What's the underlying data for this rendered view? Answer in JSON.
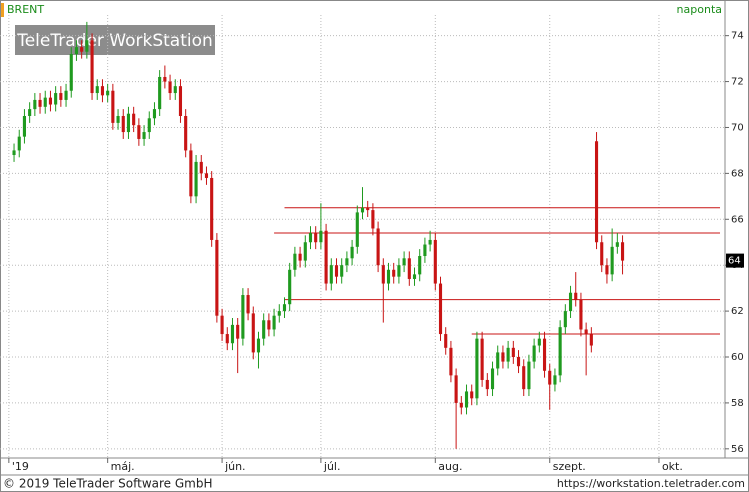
{
  "chart_data": {
    "type": "candlestick",
    "title": "BRENT",
    "period": "naponta",
    "watermark": "TeleTrader WorkStation",
    "copyright": "© 2019 TeleTrader Software GmbH",
    "url": "https://workstation.teletrader.com",
    "up_color": "#1f9a1f",
    "down_color": "#c81414",
    "line_color": "#c81414",
    "grid": true,
    "ylim": [
      55.6,
      74.9
    ],
    "yticks": [
      56,
      58,
      60,
      62,
      64,
      66,
      68,
      70,
      72,
      74
    ],
    "xlim": [
      -2.7,
      136.7
    ],
    "xticks": [
      {
        "value": -1,
        "label": "'19"
      },
      {
        "value": 18,
        "label": "máj."
      },
      {
        "value": 40,
        "label": "jún."
      },
      {
        "value": 59,
        "label": "júl."
      },
      {
        "value": 81,
        "label": "aug."
      },
      {
        "value": 103,
        "label": "szept."
      },
      {
        "value": 124,
        "label": "okt."
      }
    ],
    "last_label": {
      "value": 64.2,
      "label": "64"
    },
    "hlines": [
      {
        "value": 66.5,
        "start": 52
      },
      {
        "value": 65.4,
        "start": 50
      },
      {
        "value": 62.5,
        "start": 52
      },
      {
        "value": 61.0,
        "start": 88
      }
    ],
    "categories": [
      null,
      null,
      null,
      null,
      null,
      null,
      null,
      null,
      null,
      null,
      null,
      null,
      null,
      null,
      null,
      null,
      null,
      null,
      null,
      null,
      null,
      null,
      null,
      null,
      null,
      null,
      null,
      null,
      null,
      null,
      null,
      null,
      null,
      null,
      null,
      null,
      null,
      null,
      null,
      null,
      null,
      null,
      null,
      null,
      null,
      null,
      null,
      null,
      null,
      null,
      null,
      null,
      null,
      null,
      null,
      null,
      null,
      null,
      null,
      null,
      null,
      null,
      null,
      null,
      null,
      null,
      null,
      null,
      null,
      null,
      null,
      null,
      null,
      null,
      null,
      null,
      null,
      null,
      null,
      null,
      null,
      null,
      null,
      null,
      null,
      null,
      null,
      null,
      null,
      null,
      null,
      null,
      null,
      null,
      null,
      null,
      null,
      null,
      null,
      null,
      null,
      null,
      null,
      null,
      null,
      null,
      null,
      null,
      null,
      null,
      null,
      null,
      null,
      null,
      null,
      null,
      null,
      null
    ],
    "open": [
      68.8,
      69.0,
      69.6,
      70.5,
      70.8,
      71.2,
      70.9,
      71.3,
      71.0,
      71.5,
      71.2,
      71.6,
      73.2,
      73.5,
      73.3,
      73.8,
      71.5,
      71.8,
      71.4,
      71.6,
      70.2,
      70.5,
      69.8,
      70.6,
      70.1,
      69.5,
      69.8,
      70.4,
      70.8,
      72.2,
      72.0,
      71.5,
      71.8,
      70.5,
      69.0,
      67.0,
      68.5,
      68.0,
      67.8,
      65.1,
      61.8,
      61.0,
      60.6,
      61.4,
      60.8,
      62.7,
      61.9,
      60.2,
      60.8,
      61.6,
      61.2,
      61.8,
      62.0,
      62.3,
      63.8,
      64.5,
      64.2,
      65.0,
      65.4,
      65.0,
      65.5,
      63.2,
      64.0,
      63.5,
      64.0,
      64.3,
      64.8,
      66.3,
      66.5,
      66.4,
      65.6,
      64.0,
      63.2,
      63.8,
      63.5,
      64.0,
      64.3,
      63.4,
      63.6,
      64.4,
      64.9,
      65.1,
      63.2,
      61.0,
      60.4,
      59.2,
      58.0,
      57.8,
      58.5,
      58.2,
      60.8,
      59.0,
      58.6,
      59.5,
      60.2,
      59.8,
      60.4,
      60.0,
      59.6,
      58.6,
      59.8,
      60.5,
      60.8,
      59.4,
      58.8,
      59.2,
      61.3,
      62.0,
      62.8,
      62.5,
      61.2,
      61.0,
      69.4,
      65.0,
      64.0,
      63.6,
      64.8,
      65.0
    ],
    "high": [
      69.3,
      69.9,
      70.8,
      71.1,
      71.5,
      71.5,
      71.6,
      71.6,
      71.8,
      71.8,
      71.9,
      73.5,
      73.8,
      73.8,
      74.6,
      74.1,
      72.1,
      72.1,
      71.9,
      71.9,
      70.8,
      70.8,
      70.9,
      70.9,
      70.4,
      70.1,
      70.7,
      71.1,
      72.5,
      72.7,
      72.3,
      72.1,
      72.1,
      70.8,
      69.3,
      68.8,
      68.8,
      68.3,
      68.1,
      65.4,
      62.1,
      61.3,
      61.7,
      61.7,
      63.0,
      63.0,
      62.2,
      61.1,
      61.9,
      61.9,
      62.1,
      62.3,
      62.6,
      64.1,
      64.8,
      64.8,
      65.3,
      65.7,
      65.7,
      66.7,
      65.8,
      64.3,
      64.3,
      64.3,
      64.6,
      65.1,
      66.6,
      67.4,
      66.8,
      66.7,
      65.9,
      64.3,
      64.1,
      64.1,
      64.3,
      64.6,
      64.6,
      63.9,
      64.7,
      65.2,
      65.5,
      65.4,
      63.5,
      61.3,
      60.7,
      59.5,
      58.3,
      58.8,
      58.8,
      61.1,
      61.1,
      59.3,
      59.8,
      60.5,
      60.5,
      60.7,
      60.7,
      60.3,
      59.9,
      60.1,
      60.8,
      61.1,
      61.1,
      59.7,
      59.5,
      61.6,
      62.3,
      63.1,
      63.7,
      62.8,
      61.5,
      61.3,
      69.8,
      65.3,
      64.3,
      65.6,
      65.4,
      65.3
    ],
    "low": [
      68.5,
      68.7,
      69.3,
      70.2,
      70.5,
      70.6,
      70.6,
      70.7,
      70.7,
      70.9,
      70.9,
      71.3,
      72.9,
      73.0,
      73.0,
      71.2,
      71.2,
      71.1,
      71.1,
      69.9,
      69.9,
      69.5,
      69.5,
      69.8,
      69.2,
      69.2,
      69.5,
      70.1,
      70.5,
      71.7,
      71.2,
      71.2,
      70.2,
      68.7,
      66.7,
      66.7,
      67.7,
      67.5,
      64.8,
      61.5,
      60.7,
      60.3,
      60.3,
      59.3,
      60.5,
      61.6,
      59.9,
      59.5,
      60.5,
      60.9,
      60.9,
      61.5,
      61.7,
      62.0,
      63.5,
      63.9,
      63.9,
      64.7,
      64.7,
      64.7,
      62.9,
      62.9,
      63.2,
      63.2,
      63.7,
      64.0,
      64.5,
      66.0,
      66.1,
      65.3,
      63.7,
      61.5,
      62.9,
      63.2,
      63.2,
      63.7,
      63.1,
      63.1,
      63.3,
      64.1,
      64.6,
      62.9,
      60.7,
      60.1,
      58.9,
      56.0,
      57.5,
      57.5,
      57.9,
      57.9,
      58.7,
      58.3,
      58.3,
      59.2,
      59.5,
      59.5,
      59.7,
      59.3,
      58.3,
      58.3,
      59.5,
      60.2,
      59.1,
      57.7,
      58.5,
      58.9,
      61.0,
      61.7,
      62.2,
      60.9,
      59.2,
      60.2,
      64.7,
      63.7,
      63.2,
      63.3,
      64.5,
      63.6
    ],
    "close": [
      69.0,
      69.6,
      70.5,
      70.8,
      71.2,
      70.9,
      71.3,
      71.0,
      71.5,
      71.2,
      71.6,
      73.2,
      73.5,
      73.3,
      73.8,
      71.5,
      71.8,
      71.4,
      71.6,
      70.2,
      70.5,
      69.8,
      70.6,
      70.1,
      69.5,
      69.8,
      70.4,
      70.8,
      72.2,
      72.0,
      71.5,
      71.8,
      70.5,
      69.0,
      67.0,
      68.5,
      68.0,
      67.8,
      65.1,
      61.8,
      61.0,
      60.6,
      61.4,
      60.8,
      62.7,
      61.9,
      60.2,
      60.8,
      61.6,
      61.2,
      61.8,
      62.0,
      62.3,
      63.8,
      64.5,
      64.2,
      65.0,
      65.4,
      65.0,
      65.5,
      63.2,
      64.0,
      63.5,
      64.0,
      64.3,
      64.8,
      66.3,
      66.5,
      66.4,
      65.6,
      64.0,
      63.2,
      63.8,
      63.5,
      64.0,
      64.3,
      63.4,
      63.6,
      64.4,
      64.9,
      65.1,
      63.2,
      61.0,
      60.4,
      59.2,
      58.0,
      57.8,
      58.5,
      58.2,
      60.8,
      59.0,
      58.6,
      59.5,
      60.2,
      59.8,
      60.4,
      60.0,
      59.6,
      58.6,
      59.8,
      60.5,
      60.8,
      59.4,
      58.8,
      59.2,
      61.3,
      62.0,
      62.8,
      62.5,
      61.2,
      61.0,
      60.5,
      65.0,
      64.0,
      63.6,
      64.8,
      65.0,
      64.2
    ]
  }
}
